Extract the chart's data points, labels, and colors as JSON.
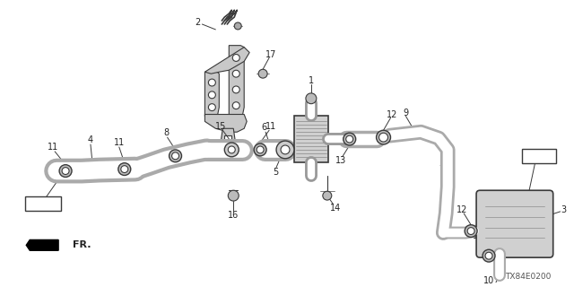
{
  "bg_color": "#ffffff",
  "diagram_code": "TX84E0200",
  "line_color": "#3a3a3a",
  "text_color": "#222222"
}
